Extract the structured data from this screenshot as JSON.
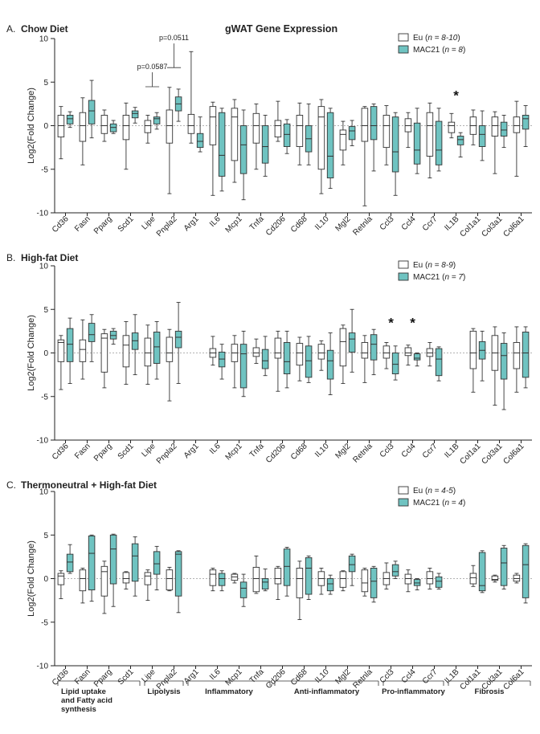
{
  "figure_title": "gWAT Gene Expression",
  "colors": {
    "eu_fill": "#ffffff",
    "mac21_fill": "#6fc3c1",
    "stroke": "#333333",
    "zero_line": "#999999"
  },
  "genes": [
    "Cd36",
    "Fasn",
    "Pparg",
    "Scd1",
    "Lipe",
    "Pnpla2",
    "Arg1",
    "IL6",
    "Mcp1",
    "Tnfa",
    "Cd206",
    "Cd68",
    "IL10",
    "Mgl2",
    "Retnla",
    "Ccl3",
    "Ccl4",
    "Ccr7",
    "IL1B",
    "Col1a1",
    "Col3a1",
    "Col6a1"
  ],
  "groups": [
    {
      "label": "Lipid uptake and Fatty acid synthesis",
      "lines": [
        "Lipid uptake",
        "and Fatty acid",
        "synthesis"
      ]
    },
    {
      "label": "Lipolysis",
      "lines": [
        "Lipolysis"
      ]
    },
    {
      "label": "Inflammatory",
      "lines": [
        "Inflammatory"
      ]
    },
    {
      "label": "Anti-inflammatory",
      "lines": [
        "Anti-inflammatory"
      ]
    },
    {
      "label": "Pro-inflammatory",
      "lines": [
        "Pro-inflammatory"
      ]
    },
    {
      "label": "Fibrosis",
      "lines": [
        "Fibrosis"
      ]
    }
  ],
  "chart_data": [
    {
      "type": "box",
      "panel_letter": "A.",
      "title": "Chow Diet",
      "ylabel": "Log2(Fold Change)",
      "ylim": [
        -10,
        10
      ],
      "yticks": [
        10,
        5,
        0,
        -5,
        -10
      ],
      "legend": [
        {
          "name": "Eu",
          "n": "n = 8-10"
        },
        {
          "name": "MAC21",
          "n": "n = 8"
        }
      ],
      "annotations": [
        {
          "gene": "Lipe",
          "text": "p=0.0587",
          "y": 6.5
        },
        {
          "gene": "Pnpla2",
          "text": "p=0.0511",
          "y": 9.8
        },
        {
          "gene": "IL1B",
          "text": "*",
          "y": 3.5
        }
      ],
      "series": [
        {
          "name": "Eu",
          "boxes": [
            [
              -3.8,
              -1.3,
              0,
              1.2,
              2.2
            ],
            [
              -4.5,
              -1.8,
              0,
              1.5,
              3.2
            ],
            [
              -1.8,
              -0.9,
              0,
              1.2,
              1.8
            ],
            [
              -5,
              -1.6,
              0,
              1.2,
              2.6
            ],
            [
              -2,
              -0.8,
              0,
              0.6,
              1.2
            ],
            [
              -7.8,
              -2,
              0,
              1.8,
              4.4
            ],
            [
              -2,
              -0.9,
              0,
              1.3,
              8.5
            ],
            [
              -8,
              -2.2,
              1,
              2.2,
              2.7
            ],
            [
              -6.5,
              -4,
              1,
              2,
              3
            ],
            [
              -5,
              -2,
              0,
              1.4,
              2.5
            ],
            [
              -1.8,
              -1.3,
              0,
              0.6,
              2.8
            ],
            [
              -4.5,
              -2.4,
              0,
              1.2,
              2.6
            ],
            [
              -7.8,
              -5,
              1,
              2.2,
              3
            ],
            [
              -4.5,
              -2.8,
              -1,
              -0.5,
              0.5
            ],
            [
              -9.2,
              -1.8,
              0,
              2,
              2.2
            ],
            [
              -4.5,
              -2.5,
              0,
              1.2,
              2.3
            ],
            [
              -2.5,
              -0.7,
              0,
              0.8,
              1.5
            ],
            [
              -6,
              -3.5,
              0,
              1.5,
              2.6
            ],
            [
              -1.4,
              -0.8,
              0,
              0.4,
              1.4
            ],
            [
              -2.2,
              -1,
              0,
              1,
              1.8
            ],
            [
              -5.5,
              -1.2,
              0,
              1,
              1.6
            ],
            [
              -5.8,
              -0.8,
              0,
              1,
              2.8
            ]
          ]
        },
        {
          "name": "MAC21",
          "boxes": [
            [
              -0.2,
              0.2,
              0.8,
              1.2,
              1.6
            ],
            [
              -1.4,
              0.2,
              1.7,
              2.9,
              5.2
            ],
            [
              -0.9,
              -0.7,
              -0.2,
              0.2,
              0.6
            ],
            [
              0.3,
              0.9,
              1.4,
              1.7,
              2.1
            ],
            [
              -0.4,
              0.2,
              0.8,
              1,
              1.5
            ],
            [
              0.5,
              1.7,
              2.5,
              3.3,
              4.2
            ],
            [
              -3,
              -2.5,
              -1.8,
              -0.9,
              1
            ],
            [
              -7.5,
              -5.8,
              -3.4,
              1.5,
              2
            ],
            [
              -8.5,
              -5.5,
              -2.2,
              0,
              1.8
            ],
            [
              -5.8,
              -4.3,
              -2.4,
              0,
              1.2
            ],
            [
              -3.2,
              -2.4,
              -1,
              0.2,
              0.7
            ],
            [
              -4.5,
              -3,
              -1.5,
              0,
              2.5
            ],
            [
              -7.2,
              -6,
              -3.5,
              1.5,
              2
            ],
            [
              -2.3,
              -1.6,
              -0.6,
              -0.1,
              0.6
            ],
            [
              -5.2,
              -1.6,
              0,
              2.2,
              2.5
            ],
            [
              -8,
              -5.3,
              -3,
              1,
              1.5
            ],
            [
              -5.5,
              -4.4,
              -2.8,
              0.3,
              2
            ],
            [
              -5.2,
              -4.5,
              -2.8,
              0.5,
              2
            ],
            [
              -3.6,
              -2.2,
              -1.6,
              -1.2,
              -0.8
            ],
            [
              -4,
              -2.4,
              -1,
              0,
              1.7
            ],
            [
              -2.5,
              -1.2,
              -0.5,
              0.4,
              1.2
            ],
            [
              -2.4,
              -0.4,
              0.8,
              1.2,
              2.3
            ]
          ]
        }
      ]
    },
    {
      "type": "box",
      "panel_letter": "B.",
      "title": "High-fat Diet",
      "ylabel": "Log2(Fold Change)",
      "ylim": [
        -10,
        10
      ],
      "yticks": [
        10,
        5,
        0,
        -5,
        -10
      ],
      "legend": [
        {
          "name": "Eu",
          "n": "n = 8-9"
        },
        {
          "name": "MAC21",
          "n": "n = 7"
        }
      ],
      "annotations": [
        {
          "gene": "Ccl3",
          "text": "*",
          "y": 3.5
        },
        {
          "gene": "Ccl4",
          "text": "*",
          "y": 3.5
        }
      ],
      "series": [
        {
          "name": "Eu",
          "boxes": [
            [
              -4.2,
              -1,
              1.2,
              1.5,
              2
            ],
            [
              -3,
              -1,
              0.4,
              1.5,
              3.8
            ],
            [
              -4,
              -2.2,
              1.7,
              2.2,
              2.7
            ],
            [
              -3.6,
              -1.6,
              0.9,
              2,
              3.6
            ],
            [
              -3.6,
              -1.5,
              0,
              1.7,
              3.2
            ],
            [
              -5.5,
              -1,
              0,
              1.8,
              2.7
            ],
            null,
            [
              -1.4,
              -0.5,
              0,
              0.5,
              1.9
            ],
            [
              -4,
              -1,
              0,
              1,
              2
            ],
            [
              -1.2,
              -0.4,
              0,
              0.6,
              1.6
            ],
            [
              -4.4,
              -0.6,
              0,
              1.7,
              2.5
            ],
            [
              -3.2,
              -1.4,
              0,
              1.1,
              1.8
            ],
            [
              -2,
              -0.7,
              0,
              1,
              1.4
            ],
            [
              -3.5,
              -1.5,
              1.3,
              2.8,
              3.2
            ],
            [
              -3.4,
              -0.6,
              0,
              1.2,
              2
            ],
            [
              -1.8,
              -0.6,
              0,
              0.8,
              1.2
            ],
            [
              -1.4,
              -0.3,
              0,
              0.6,
              0.9
            ],
            [
              -1.5,
              -0.4,
              0,
              0.5,
              1.2
            ],
            null,
            [
              -4.5,
              -1.8,
              0,
              2.5,
              2.8
            ],
            [
              -6,
              -2,
              0,
              2,
              3
            ],
            [
              -4.5,
              -1.8,
              0,
              1.2,
              3
            ]
          ]
        },
        {
          "name": "MAC21",
          "boxes": [
            [
              -3.5,
              -1,
              1,
              2.8,
              4
            ],
            [
              -1,
              1.3,
              2.1,
              3.4,
              4.4
            ],
            [
              1,
              1.6,
              2,
              2.5,
              2.8
            ],
            [
              -2.5,
              0.4,
              1.4,
              2.3,
              4.4
            ],
            [
              -3,
              -1.2,
              0.7,
              2.4,
              3.6
            ],
            [
              -3.5,
              0.6,
              1.8,
              2.5,
              5.8
            ],
            null,
            [
              -3,
              -1.6,
              -0.7,
              0.1,
              1
            ],
            [
              -5,
              -4,
              -0.1,
              1,
              2.5
            ],
            [
              -2.6,
              -1.8,
              -0.9,
              0.4,
              1.9
            ],
            [
              -4,
              -2.4,
              -1,
              1.2,
              2.5
            ],
            [
              -3.4,
              -2.8,
              -0.9,
              0.8,
              1.9
            ],
            [
              -4.8,
              -3,
              -0.9,
              0.3,
              2.3
            ],
            [
              -2.2,
              0.1,
              1.6,
              2.3,
              5
            ],
            [
              -2.5,
              -0.8,
              1,
              2.1,
              2.7
            ],
            [
              -3.1,
              -2.4,
              -1.3,
              0,
              0.8
            ],
            [
              -1.5,
              -0.8,
              -0.6,
              -0.1,
              0
            ],
            [
              -3.2,
              -2.6,
              -0.7,
              0.5,
              0.7
            ],
            null,
            [
              -3.2,
              -0.7,
              0.3,
              1.3,
              2.5
            ],
            [
              -6.5,
              -3,
              -0.3,
              1.1,
              2.3
            ],
            [
              -4,
              -2.8,
              0,
              2.4,
              3
            ]
          ]
        }
      ]
    },
    {
      "type": "box",
      "panel_letter": "C.",
      "title": "Thermoneutral + High-fat Diet",
      "ylabel": "Log2(Fold Change)",
      "ylim": [
        -10,
        10
      ],
      "yticks": [
        10,
        5,
        0,
        -5,
        -10
      ],
      "legend": [
        {
          "name": "Eu",
          "n": "n = 4-5"
        },
        {
          "name": "MAC21",
          "n": "n = 4"
        }
      ],
      "annotations": [],
      "series": [
        {
          "name": "Eu",
          "boxes": [
            [
              -2.3,
              -0.7,
              0.3,
              0.6,
              0.9
            ],
            [
              -2.8,
              -1.4,
              0,
              1,
              1.2
            ],
            [
              -4,
              -2,
              0.8,
              1.4,
              2
            ],
            [
              -1.2,
              -0.5,
              0,
              0.7,
              0.8
            ],
            [
              -2.5,
              -0.7,
              0.3,
              0.7,
              1
            ],
            [
              -1.4,
              -1.3,
              0,
              1,
              1.3
            ],
            null,
            [
              -1.4,
              -0.8,
              0.5,
              1,
              1.2
            ],
            [
              -0.5,
              -0.2,
              0.2,
              0.5,
              0.6
            ],
            [
              -1.7,
              -1.5,
              0,
              1.3,
              2.6
            ],
            [
              -2.4,
              -0.6,
              0,
              1.2,
              1.4
            ],
            [
              -4.7,
              -2.2,
              0,
              1.2,
              2
            ],
            [
              -1.8,
              -0.8,
              0,
              0.8,
              1.2
            ],
            [
              -1.4,
              -1,
              0,
              0.8,
              0.9
            ],
            [
              -2,
              -1.5,
              -0.5,
              1,
              1.2
            ],
            [
              -1.2,
              -0.7,
              0,
              0.7,
              1.8
            ],
            [
              -1.5,
              -0.6,
              0,
              0.5,
              1
            ],
            [
              -1.2,
              -0.6,
              0,
              0.8,
              1.2
            ],
            null,
            [
              -0.9,
              -0.6,
              0.1,
              0.6,
              1.5
            ],
            [
              -0.4,
              -0.2,
              -0.1,
              0.3,
              0.4
            ],
            [
              -0.5,
              -0.3,
              0,
              0.4,
              0.6
            ]
          ]
        },
        {
          "name": "MAC21",
          "boxes": [
            [
              0.6,
              0.8,
              1.9,
              2.8,
              3.9
            ],
            [
              -2.6,
              -1.3,
              2.9,
              4.9,
              5
            ],
            [
              -3.2,
              -0.6,
              3.4,
              5,
              5.1
            ],
            [
              -2,
              -0.3,
              2.6,
              4,
              4.8
            ],
            [
              -1.3,
              0.5,
              1.7,
              3.1,
              3.7
            ],
            [
              -3.9,
              -2,
              2.8,
              3.1,
              3.2
            ],
            null,
            [
              -1.4,
              -0.8,
              0,
              0.6,
              0.9
            ],
            [
              -3.2,
              -2.2,
              -1.1,
              -0.4,
              0.5
            ],
            [
              -1.4,
              -1.2,
              -0.4,
              0,
              1.1
            ],
            [
              -2,
              -0.8,
              1.4,
              3.4,
              3.6
            ],
            [
              -2.4,
              -1.8,
              1.2,
              2.4,
              2.6
            ],
            [
              -1.8,
              -1.4,
              -0.6,
              0,
              0.4
            ],
            [
              -0.8,
              0.8,
              1.6,
              2.6,
              2.8
            ],
            [
              -2.7,
              -2.2,
              -0.3,
              1.2,
              1.4
            ],
            [
              0,
              0.3,
              0.8,
              1.6,
              2
            ],
            [
              -1.3,
              -0.8,
              -0.5,
              -0.1,
              0
            ],
            [
              -1.2,
              -1,
              -0.3,
              0.2,
              0.6
            ],
            null,
            [
              -1.6,
              -1.4,
              -0.8,
              3,
              3.2
            ],
            [
              -1.2,
              -0.8,
              1.8,
              3.5,
              3.8
            ],
            [
              -2.8,
              -2.2,
              1.6,
              3.8,
              4
            ]
          ]
        }
      ]
    }
  ]
}
